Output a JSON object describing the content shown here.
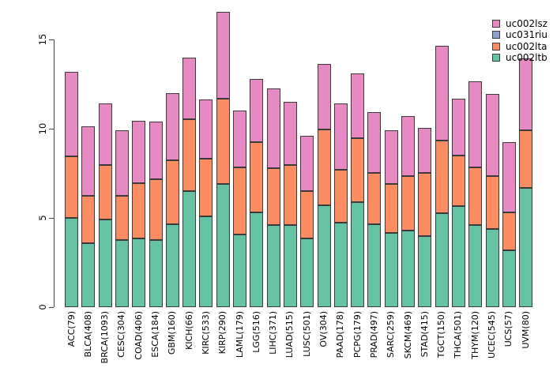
{
  "figure": {
    "background": "#ffffff",
    "axis_color": "#444444",
    "bar_border_color": "#3b3b3b",
    "text_color": "#000000"
  },
  "chart_data": {
    "type": "bar",
    "subtype": "stacked-vertical",
    "title": "",
    "xlabel": "",
    "ylabel": "",
    "grid": false,
    "ylim": [
      0,
      16.6
    ],
    "yticks": [
      0,
      5,
      10,
      15
    ],
    "categories": [
      "ACC(79)",
      "BLCA(408)",
      "BRCA(1093)",
      "CESC(304)",
      "COAD(406)",
      "ESCA(184)",
      "GBM(160)",
      "KICH(66)",
      "KIRC(533)",
      "KIRP(290)",
      "LAML(179)",
      "LGG(516)",
      "LIHC(371)",
      "LUAD(515)",
      "LUSC(501)",
      "OV(304)",
      "PAAD(178)",
      "PCPG(179)",
      "PRAD(497)",
      "SARC(259)",
      "SKCM(469)",
      "STAD(415)",
      "TGCT(150)",
      "THCA(501)",
      "THYM(120)",
      "UCEC(545)",
      "UCS(57)",
      "UVM(80)"
    ],
    "series": [
      {
        "name": "uc002ltb",
        "color": "#66C2A5",
        "values": [
          5.0,
          3.6,
          4.9,
          3.75,
          3.85,
          3.75,
          4.65,
          6.5,
          5.1,
          6.9,
          4.05,
          5.3,
          4.6,
          4.6,
          3.85,
          5.7,
          4.75,
          5.9,
          4.65,
          4.15,
          4.3,
          4.0,
          5.25,
          5.65,
          4.6,
          4.4,
          3.2,
          6.7
        ]
      },
      {
        "name": "uc002lta",
        "color": "#FC8D62",
        "values": [
          3.45,
          2.65,
          3.05,
          2.5,
          3.1,
          3.4,
          3.6,
          4.05,
          3.2,
          4.8,
          3.8,
          3.95,
          3.2,
          3.35,
          2.65,
          4.25,
          2.95,
          3.55,
          2.85,
          2.75,
          3.05,
          3.5,
          4.1,
          2.85,
          3.25,
          2.95,
          2.1,
          3.2
        ]
      },
      {
        "name": "uc031riu",
        "color": "#8DA0CB",
        "values": [
          0,
          0,
          0,
          0,
          0,
          0,
          0,
          0,
          0,
          0,
          0,
          0,
          0,
          0,
          0,
          0,
          0,
          0,
          0,
          0,
          0,
          0,
          0,
          0,
          0,
          0,
          0,
          0
        ]
      },
      {
        "name": "uc002lsz",
        "color": "#E78AC3",
        "values": [
          4.75,
          3.9,
          3.45,
          3.65,
          3.5,
          3.25,
          3.75,
          3.45,
          3.35,
          4.85,
          3.15,
          3.55,
          4.45,
          3.55,
          3.1,
          3.7,
          3.7,
          3.65,
          3.45,
          3.0,
          3.35,
          2.55,
          5.3,
          3.2,
          4.8,
          4.6,
          3.95,
          4.05
        ]
      }
    ],
    "stack_order_bottom_to_top": [
      "uc002ltb",
      "uc002lta",
      "uc031riu",
      "uc002lsz"
    ],
    "legend": {
      "position": "top-right",
      "frame": false,
      "entries_top_to_bottom": [
        "uc002lsz",
        "uc031riu",
        "uc002lta",
        "uc002ltb"
      ]
    }
  }
}
